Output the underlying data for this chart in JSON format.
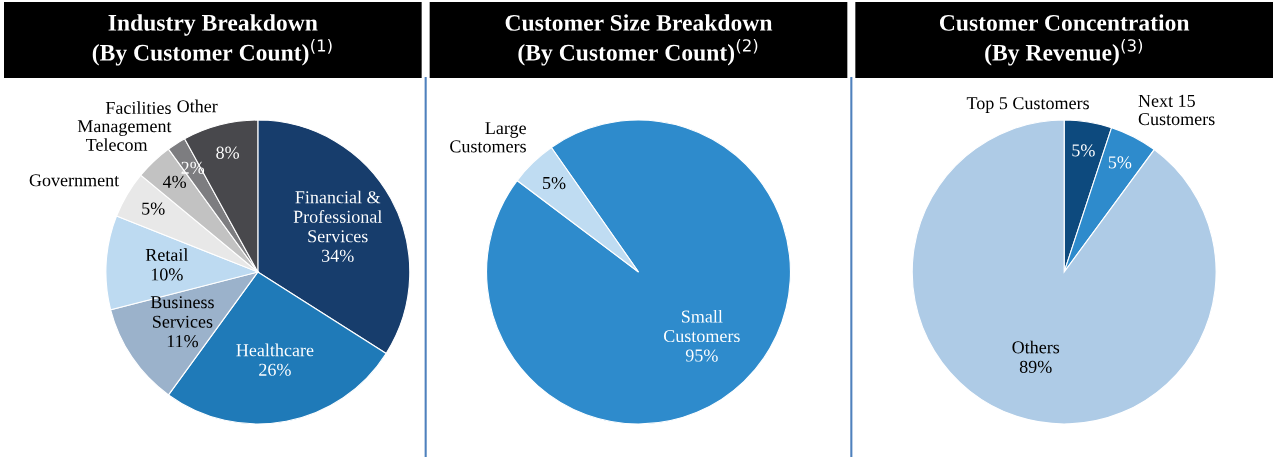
{
  "chart_data": [
    {
      "type": "pie",
      "title": "Industry Breakdown\n(By Customer Count)$^{(1)}$",
      "categories": [
        "Financial &\nProfessional\nServices",
        "Healthcare",
        "Business\nServices",
        "Retail",
        "Government",
        "Telecom",
        "Facilities\nManagement",
        "Other"
      ],
      "values": [
        34,
        26,
        11,
        10,
        5,
        4,
        2,
        8
      ],
      "colors": [
        "#173d6c",
        "#1f7ab8",
        "#9bb2cb",
        "#bddaf1",
        "#e8e8e8",
        "#c2c2c2",
        "#7d7d80",
        "#48484c"
      ],
      "value_labels": [
        "34%",
        "26%",
        "11%",
        "10%",
        "5%",
        "4%",
        "2%",
        "8%"
      ]
    },
    {
      "type": "pie",
      "title": "Customer Size Breakdown\n(By Customer Count)$^{(2)}$",
      "categories": [
        "Small\nCustomers",
        "Large\nCustomers"
      ],
      "values": [
        95,
        5
      ],
      "colors": [
        "#2e8bcc",
        "#bfdcf2"
      ],
      "value_labels": [
        "95%",
        "5%"
      ]
    },
    {
      "type": "pie",
      "title": "Customer Concentration\n(By Revenue)$^{(3)}$",
      "categories": [
        "Top 5 Customers",
        "Next 15\nCustomers",
        "Others"
      ],
      "values": [
        5,
        5,
        89
      ],
      "colors": [
        "#0d4a7e",
        "#2e8bcc",
        "#aecbe6"
      ],
      "value_labels": [
        "5%",
        "5%",
        "89%"
      ]
    }
  ]
}
